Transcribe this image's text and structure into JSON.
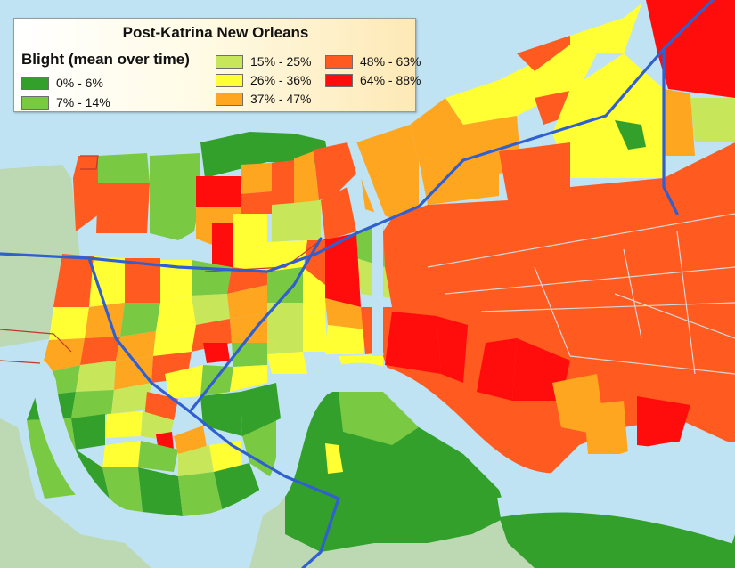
{
  "map": {
    "title": "Post-Katrina New Orleans",
    "legend_title": "Blight (mean over time)",
    "colors": {
      "water": "#bfe3f3",
      "land_outside": "#bcd9b4",
      "river": "#bfe3f3",
      "highway": "#3b6fd8",
      "street_line": "#c8c8c8",
      "boundary_line": "#c0392b"
    },
    "legend": [
      {
        "label": "0% - 6%",
        "color": "#33a02c"
      },
      {
        "label": "7% - 14%",
        "color": "#7ac943"
      },
      {
        "label": "15% - 25%",
        "color": "#c8e65a"
      },
      {
        "label": "26% - 36%",
        "color": "#ffff33"
      },
      {
        "label": "37% - 47%",
        "color": "#ffa620"
      },
      {
        "label": "48% - 63%",
        "color": "#ff5a1f"
      },
      {
        "label": "64% - 88%",
        "color": "#ff0d0d"
      }
    ]
  }
}
